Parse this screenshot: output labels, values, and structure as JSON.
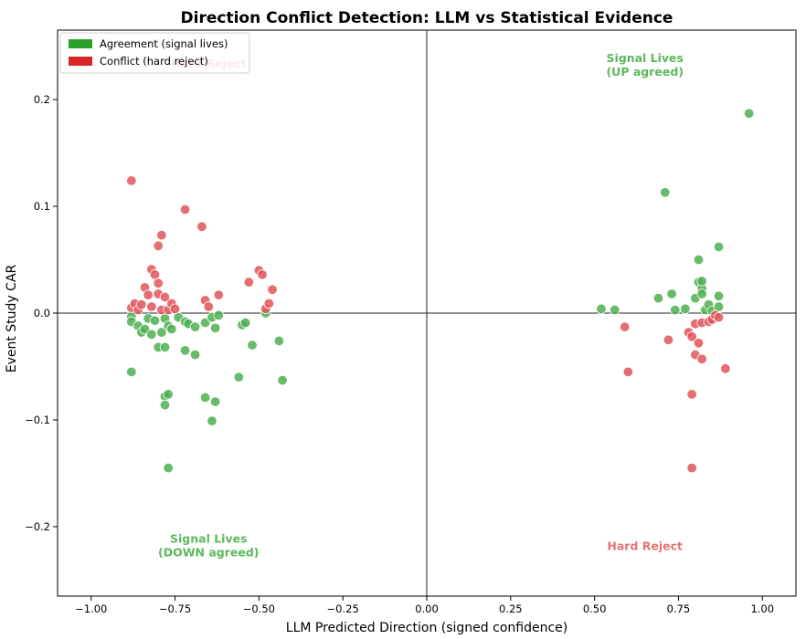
{
  "chart_data": {
    "type": "scatter",
    "title": "Direction Conflict Detection: LLM vs Statistical Evidence",
    "xlabel": "LLM Predicted Direction (signed confidence)",
    "ylabel": "Event Study CAR",
    "xlim": [
      -1.1,
      1.1
    ],
    "ylim": [
      -0.265,
      0.265
    ],
    "xticks": [
      -1.0,
      -0.75,
      -0.5,
      -0.25,
      0.0,
      0.25,
      0.5,
      0.75,
      1.0
    ],
    "xtick_labels": [
      "−1.00",
      "−0.75",
      "−0.50",
      "−0.25",
      "0.00",
      "0.25",
      "0.50",
      "0.75",
      "1.00"
    ],
    "yticks": [
      -0.2,
      -0.1,
      0.0,
      0.1,
      0.2
    ],
    "ytick_labels": [
      "−0.2",
      "−0.1",
      "0.0",
      "0.1",
      "0.2"
    ],
    "grid": false,
    "reference_lines": {
      "x": 0,
      "y": 0
    },
    "legend": {
      "placement": "top-left",
      "entries": [
        {
          "label": "Agreement (signal lives)",
          "color": "#2ca02c"
        },
        {
          "label": "Conflict (hard reject)",
          "color": "#d62728"
        }
      ]
    },
    "colors": {
      "agreement": "#4caf50",
      "conflict": "#e0555a"
    },
    "quadrant_labels": [
      {
        "text": "Signal Lives\n(UP agreed)",
        "x": 0.65,
        "y": 0.235,
        "color": "#5cb85c"
      },
      {
        "text": "Hard Reject",
        "x": -0.65,
        "y": 0.23,
        "color": "#e57373"
      },
      {
        "text": "Signal Lives\n(DOWN agreed)",
        "x": -0.65,
        "y": -0.215,
        "color": "#5cb85c"
      },
      {
        "text": "Hard Reject",
        "x": 0.65,
        "y": -0.222,
        "color": "#e57373"
      }
    ],
    "series": [
      {
        "name": "Agreement (signal lives)",
        "points": [
          [
            -0.88,
            -0.003
          ],
          [
            -0.88,
            -0.008
          ],
          [
            -0.86,
            -0.012
          ],
          [
            -0.85,
            -0.018
          ],
          [
            -0.84,
            -0.015
          ],
          [
            -0.83,
            -0.005
          ],
          [
            -0.82,
            -0.02
          ],
          [
            -0.81,
            -0.007
          ],
          [
            -0.8,
            -0.032
          ],
          [
            -0.79,
            -0.018
          ],
          [
            -0.78,
            -0.005
          ],
          [
            -0.77,
            -0.012
          ],
          [
            -0.76,
            -0.015
          ],
          [
            -0.74,
            -0.004
          ],
          [
            -0.72,
            -0.008
          ],
          [
            -0.71,
            -0.01
          ],
          [
            -0.69,
            -0.013
          ],
          [
            -0.66,
            -0.009
          ],
          [
            -0.64,
            -0.004
          ],
          [
            -0.63,
            -0.014
          ],
          [
            -0.62,
            -0.002
          ],
          [
            -0.55,
            -0.011
          ],
          [
            -0.54,
            -0.009
          ],
          [
            -0.88,
            -0.055
          ],
          [
            -0.78,
            -0.032
          ],
          [
            -0.72,
            -0.035
          ],
          [
            -0.69,
            -0.039
          ],
          [
            -0.52,
            -0.03
          ],
          [
            -0.44,
            -0.026
          ],
          [
            -0.43,
            -0.063
          ],
          [
            -0.56,
            -0.06
          ],
          [
            -0.78,
            -0.078
          ],
          [
            -0.77,
            -0.076
          ],
          [
            -0.78,
            -0.086
          ],
          [
            -0.66,
            -0.079
          ],
          [
            -0.63,
            -0.083
          ],
          [
            -0.64,
            -0.101
          ],
          [
            -0.77,
            -0.145
          ],
          [
            -0.48,
            0.0
          ],
          [
            0.52,
            0.004
          ],
          [
            0.56,
            0.003
          ],
          [
            0.69,
            0.014
          ],
          [
            0.71,
            0.113
          ],
          [
            0.73,
            0.018
          ],
          [
            0.74,
            0.003
          ],
          [
            0.77,
            0.004
          ],
          [
            0.8,
            0.014
          ],
          [
            0.81,
            0.05
          ],
          [
            0.81,
            0.029
          ],
          [
            0.82,
            0.023
          ],
          [
            0.82,
            0.03
          ],
          [
            0.82,
            0.018
          ],
          [
            0.83,
            0.003
          ],
          [
            0.84,
            0.008
          ],
          [
            0.85,
            0.002
          ],
          [
            0.87,
            0.062
          ],
          [
            0.87,
            0.016
          ],
          [
            0.87,
            0.006
          ],
          [
            0.96,
            0.187
          ]
        ]
      },
      {
        "name": "Conflict (hard reject)",
        "points": [
          [
            -0.88,
            0.124
          ],
          [
            -0.88,
            0.005
          ],
          [
            -0.87,
            0.009
          ],
          [
            -0.86,
            0.003
          ],
          [
            -0.85,
            0.008
          ],
          [
            -0.84,
            0.024
          ],
          [
            -0.83,
            0.017
          ],
          [
            -0.82,
            0.006
          ],
          [
            -0.82,
            0.041
          ],
          [
            -0.81,
            0.036
          ],
          [
            -0.8,
            0.028
          ],
          [
            -0.8,
            0.063
          ],
          [
            -0.79,
            0.073
          ],
          [
            -0.8,
            0.018
          ],
          [
            -0.79,
            0.003
          ],
          [
            -0.78,
            0.015
          ],
          [
            -0.77,
            0.003
          ],
          [
            -0.76,
            0.009
          ],
          [
            -0.75,
            0.004
          ],
          [
            -0.72,
            0.097
          ],
          [
            -0.67,
            0.081
          ],
          [
            -0.66,
            0.012
          ],
          [
            -0.65,
            0.006
          ],
          [
            -0.62,
            0.017
          ],
          [
            -0.53,
            0.029
          ],
          [
            -0.5,
            0.04
          ],
          [
            -0.49,
            0.036
          ],
          [
            -0.48,
            0.004
          ],
          [
            -0.47,
            0.009
          ],
          [
            -0.46,
            0.022
          ],
          [
            0.59,
            -0.013
          ],
          [
            0.6,
            -0.055
          ],
          [
            0.72,
            -0.025
          ],
          [
            0.78,
            -0.018
          ],
          [
            0.79,
            -0.022
          ],
          [
            0.8,
            -0.01
          ],
          [
            0.8,
            -0.039
          ],
          [
            0.81,
            -0.028
          ],
          [
            0.82,
            -0.043
          ],
          [
            0.82,
            -0.009
          ],
          [
            0.84,
            -0.008
          ],
          [
            0.85,
            -0.006
          ],
          [
            0.86,
            -0.002
          ],
          [
            0.87,
            -0.004
          ],
          [
            0.89,
            -0.052
          ],
          [
            0.79,
            -0.076
          ],
          [
            0.79,
            -0.145
          ]
        ]
      }
    ]
  }
}
